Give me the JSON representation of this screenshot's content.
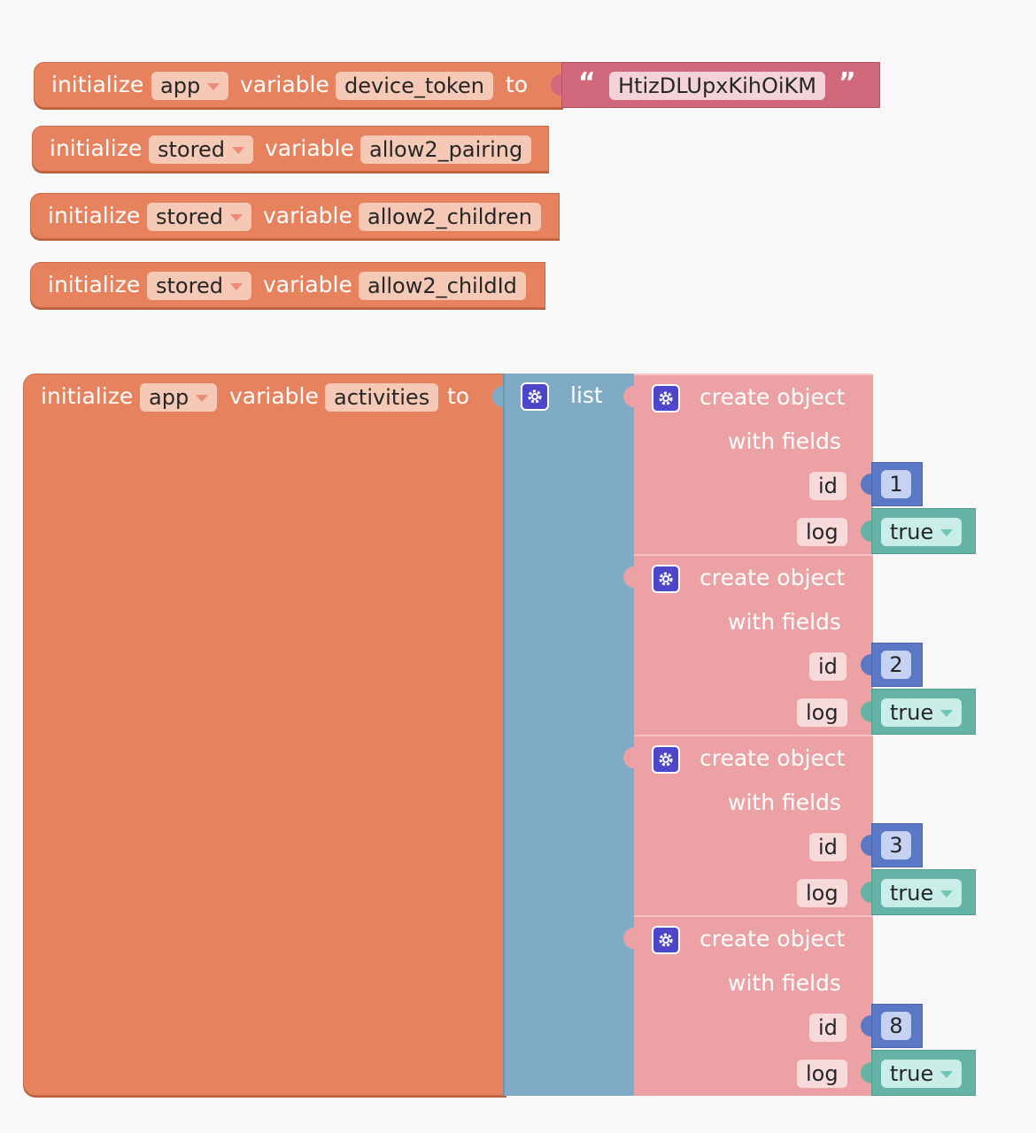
{
  "workspace": {
    "init_blocks": [
      {
        "keyword": "initialize",
        "scope": "app",
        "variable_word": "variable",
        "name": "device_token",
        "to_word": "to",
        "value": "HtizDLUpxKihOiKM"
      },
      {
        "keyword": "initialize",
        "scope": "stored",
        "variable_word": "variable",
        "name": "allow2_pairing"
      },
      {
        "keyword": "initialize",
        "scope": "stored",
        "variable_word": "variable",
        "name": "allow2_children"
      },
      {
        "keyword": "initialize",
        "scope": "stored",
        "variable_word": "variable",
        "name": "allow2_childId"
      }
    ],
    "activities_block": {
      "keyword": "initialize",
      "scope": "app",
      "variable_word": "variable",
      "name": "activities",
      "to_word": "to",
      "list_label": "list",
      "objects": [
        {
          "title": "create object",
          "subtitle": "with fields",
          "id_key": "id",
          "id_value": "1",
          "log_key": "log",
          "log_value": "true"
        },
        {
          "title": "create object",
          "subtitle": "with fields",
          "id_key": "id",
          "id_value": "2",
          "log_key": "log",
          "log_value": "true"
        },
        {
          "title": "create object",
          "subtitle": "with fields",
          "id_key": "id",
          "id_value": "3",
          "log_key": "log",
          "log_value": "true"
        },
        {
          "title": "create object",
          "subtitle": "with fields",
          "id_key": "id",
          "id_value": "8",
          "log_key": "log",
          "log_value": "true"
        }
      ]
    }
  },
  "icons": {
    "dropdown": "chevron-down-icon",
    "mutator": "gear-icon",
    "quotes": "quote-icon"
  },
  "colors": {
    "variables": "#e7825f",
    "text": "#d0677a",
    "lists": "#80abc7",
    "objects": "#eca2a4",
    "math": "#5b78c6",
    "logic": "#64b3a6"
  }
}
